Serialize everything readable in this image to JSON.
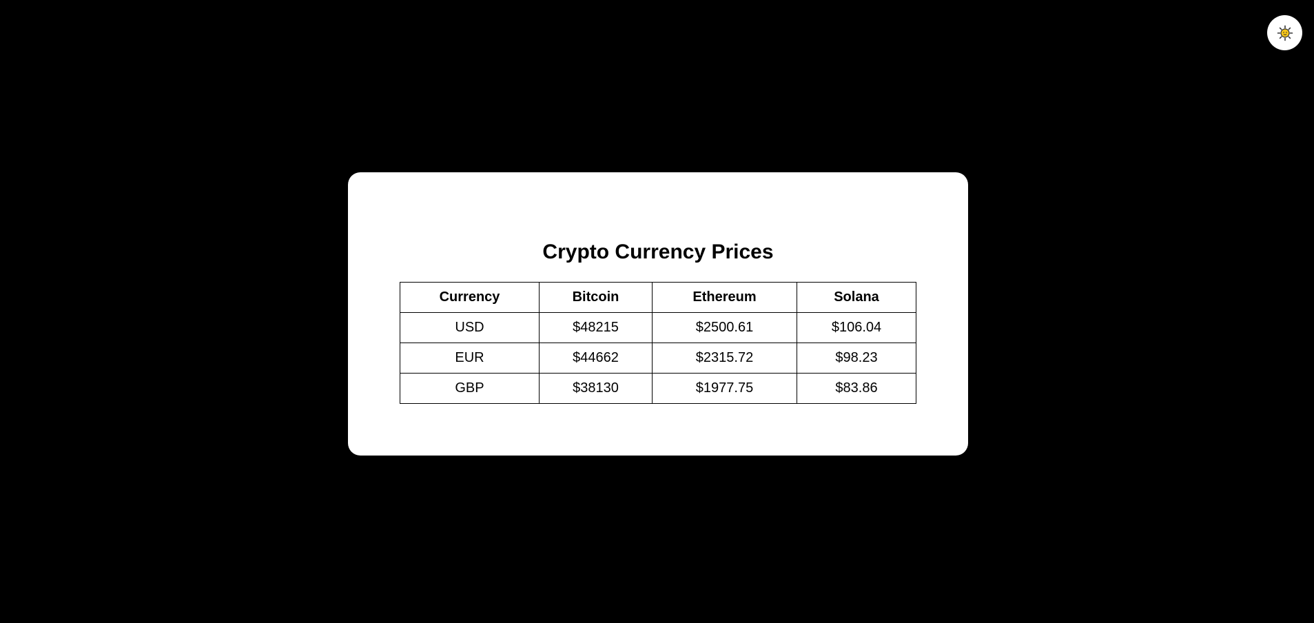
{
  "theme_toggle": {
    "icon": "sun-icon",
    "icon_color": "#f5c518"
  },
  "card": {
    "title": "Crypto Currency Prices",
    "table": {
      "headers": [
        "Currency",
        "Bitcoin",
        "Ethereum",
        "Solana"
      ],
      "rows": [
        [
          "USD",
          "$48215",
          "$2500.61",
          "$106.04"
        ],
        [
          "EUR",
          "$44662",
          "$2315.72",
          "$98.23"
        ],
        [
          "GBP",
          "$38130",
          "$1977.75",
          "$83.86"
        ]
      ]
    }
  },
  "colors": {
    "background": "#000000",
    "card": "#ffffff",
    "text": "#000000"
  }
}
